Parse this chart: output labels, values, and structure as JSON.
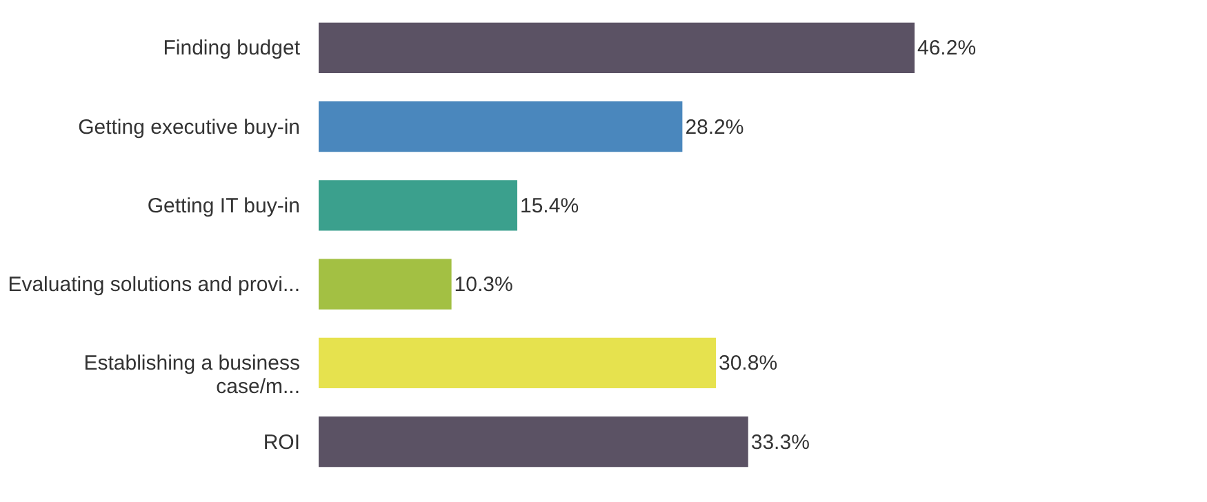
{
  "chart_data": {
    "type": "bar",
    "orientation": "horizontal",
    "categories": [
      "Finding budget",
      "Getting executive buy-in",
      "Getting IT buy-in",
      "Evaluating solutions and provi...",
      "Establishing a business\ncase/m...",
      "ROI"
    ],
    "values": [
      46.2,
      28.2,
      15.4,
      10.3,
      30.8,
      33.3
    ],
    "colors": [
      "#5b5264",
      "#4a87bd",
      "#3ba08d",
      "#a3c043",
      "#e6e24e",
      "#5b5264"
    ],
    "value_labels": [
      "46.2%",
      "28.2%",
      "15.4%",
      "10.3%",
      "30.8%",
      "33.3%"
    ]
  }
}
